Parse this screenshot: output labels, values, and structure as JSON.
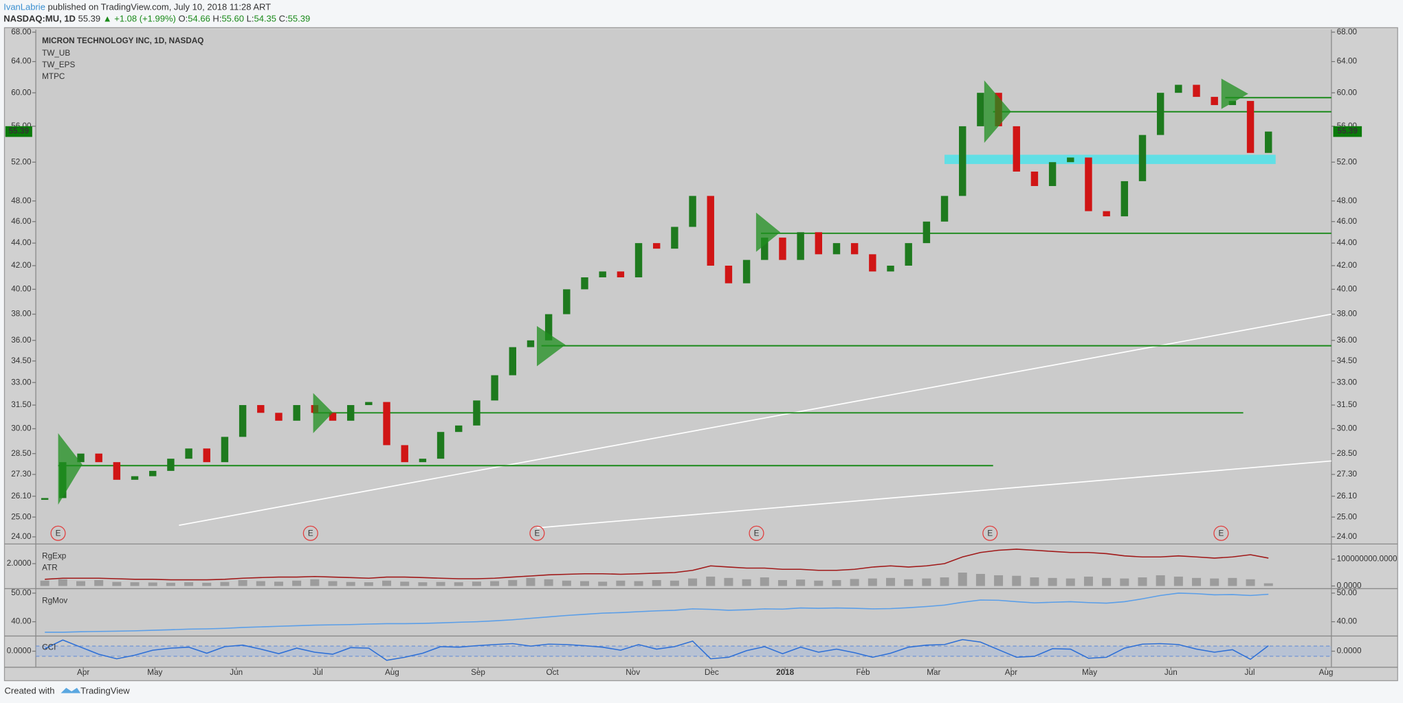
{
  "header": {
    "author": "IvanLabrie",
    "published": "published on TradingView.com, July 10, 2018 11:28 ART",
    "symbol": "NASDAQ:MU, 1D",
    "last": "55.39",
    "change": "▲ +1.08 (+1.99%)",
    "o_label": "O:",
    "o": "54.66",
    "h_label": "H:",
    "h": "55.60",
    "l_label": "L:",
    "l": "54.35",
    "c_label": "C:",
    "c": "55.39"
  },
  "footer": {
    "created": "Created with",
    "brand": "TradingView"
  },
  "chart_data": [
    {
      "type": "candlestick",
      "title": "MICRON TECHNOLOGY INC, 1D, NASDAQ",
      "indicators": [
        "TW_UB",
        "TW_EPS",
        "MTPC"
      ],
      "x": [
        0,
        1,
        2,
        3,
        4,
        5,
        6,
        7,
        8,
        9,
        10,
        11,
        12,
        13,
        14,
        15,
        16,
        17,
        18,
        19,
        20,
        21,
        22,
        23,
        24,
        25,
        26,
        27,
        28,
        29,
        30,
        31,
        32,
        33,
        34,
        35,
        36,
        37,
        38,
        39,
        40,
        41,
        42,
        43,
        44,
        45,
        46,
        47,
        48,
        49,
        50,
        51,
        52,
        53,
        54,
        55,
        56,
        57,
        58,
        59,
        60,
        61,
        62,
        63,
        64,
        65,
        66,
        67,
        68
      ],
      "values": [
        26.0,
        28.0,
        28.5,
        28.0,
        27.0,
        27.2,
        27.5,
        28.2,
        28.8,
        28.0,
        29.5,
        31.5,
        31.0,
        30.5,
        31.5,
        31.0,
        30.5,
        31.5,
        31.7,
        29.0,
        28.0,
        28.2,
        29.8,
        30.2,
        31.8,
        33.5,
        35.5,
        36.0,
        38.0,
        40.0,
        41.0,
        41.5,
        41.0,
        44.0,
        43.5,
        45.5,
        48.5,
        42.0,
        40.5,
        42.5,
        44.5,
        42.5,
        45.0,
        43.0,
        44.0,
        43.0,
        41.5,
        42.0,
        44.0,
        46.0,
        48.5,
        56.0,
        60.0,
        56.0,
        51.0,
        49.5,
        52.0,
        52.5,
        47.0,
        46.5,
        50.0,
        55.0,
        60.0,
        61.0,
        59.5,
        58.5,
        59.0,
        53.0,
        55.39
      ],
      "up_color": "#1e7a1e",
      "down_color": "#d01515",
      "log_scale": true,
      "xlim": [
        -0.5,
        71.5
      ],
      "xticks": [
        {
          "value": 2.14,
          "label": "Apr"
        },
        {
          "value": 6.12,
          "label": "May"
        },
        {
          "value": 10.64,
          "label": "Jun"
        },
        {
          "value": 15.17,
          "label": "Jul"
        },
        {
          "value": 19.3,
          "label": "Aug"
        },
        {
          "value": 24.08,
          "label": "Sep"
        },
        {
          "value": 28.21,
          "label": "Oct"
        },
        {
          "value": 32.68,
          "label": "Nov"
        },
        {
          "value": 37.06,
          "label": "Dec"
        },
        {
          "value": 41.14,
          "label": "2018"
        },
        {
          "value": 45.47,
          "label": "Feb"
        },
        {
          "value": 49.4,
          "label": "Mar"
        },
        {
          "value": 53.7,
          "label": "Apr"
        },
        {
          "value": 58.06,
          "label": "May"
        },
        {
          "value": 62.58,
          "label": "Jun"
        },
        {
          "value": 66.96,
          "label": "Jul"
        },
        {
          "value": 71.2,
          "label": "Aug"
        }
      ],
      "ylim": [
        24,
        68
      ],
      "yticks": [
        {
          "value": 24,
          "label": "24.00"
        },
        {
          "value": 25,
          "label": "25.00"
        },
        {
          "value": 26.1,
          "label": "26.10"
        },
        {
          "value": 27.3,
          "label": "27.30"
        },
        {
          "value": 28.5,
          "label": "28.50"
        },
        {
          "value": 30,
          "label": "30.00"
        },
        {
          "value": 31.5,
          "label": "31.50"
        },
        {
          "value": 33,
          "label": "33.00"
        },
        {
          "value": 34.5,
          "label": "34.50"
        },
        {
          "value": 36,
          "label": "36.00"
        },
        {
          "value": 38,
          "label": "38.00"
        },
        {
          "value": 40,
          "label": "40.00"
        },
        {
          "value": 42,
          "label": "42.00"
        },
        {
          "value": 44,
          "label": "44.00"
        },
        {
          "value": 46,
          "label": "46.00"
        },
        {
          "value": 48,
          "label": "48.00"
        },
        {
          "value": 52,
          "label": "52.00"
        },
        {
          "value": 56,
          "label": "56.00"
        },
        {
          "value": 60,
          "label": "60.00"
        },
        {
          "value": 64,
          "label": "64.00"
        },
        {
          "value": 68,
          "label": "68.00"
        }
      ],
      "last_price": 55.39,
      "last_price_color": "#0a7a0a",
      "levels": [
        {
          "value": 27.8,
          "x0": 0.74,
          "x1": 52.7
        },
        {
          "value": 31.0,
          "x0": 14.9,
          "x1": 66.6
        },
        {
          "value": 35.6,
          "x0": 27.6,
          "x1": 71.5
        },
        {
          "value": 44.9,
          "x0": 39.8,
          "x1": 71.5
        },
        {
          "value": 57.7,
          "x0": 52.7,
          "x1": 71.5
        },
        {
          "value": 59.4,
          "x0": 65.6,
          "x1": 71.5
        }
      ],
      "level_color": "#1a8a1a",
      "zone": {
        "low": 51.8,
        "high": 52.8,
        "x0": 50.0,
        "x1": 68.4,
        "color": "#4fe3ea"
      },
      "trendlines": [
        {
          "x": [
            7.46,
            71.5
          ],
          "y": [
            24.58,
            38.0
          ]
        },
        {
          "x": [
            27.36,
            71.5
          ],
          "y": [
            24.45,
            28.07
          ]
        }
      ],
      "earnings": {
        "label": "E",
        "x": [
          0.74,
          14.77,
          27.36,
          39.55,
          52.53,
          65.37
        ]
      }
    },
    {
      "type": "bar",
      "series": [
        {
          "name": "RgExp",
          "color": "#9c9c9c",
          "values": [
            20000000,
            25000000,
            18000000,
            22000000,
            15000000,
            14000000,
            13000000,
            12000000,
            14000000,
            12000000,
            15000000,
            22000000,
            18000000,
            16000000,
            20000000,
            25000000,
            18000000,
            15000000,
            14000000,
            20000000,
            16000000,
            14000000,
            15000000,
            14000000,
            16000000,
            18000000,
            22000000,
            30000000,
            25000000,
            20000000,
            18000000,
            16000000,
            20000000,
            18000000,
            22000000,
            20000000,
            28000000,
            35000000,
            30000000,
            25000000,
            32000000,
            22000000,
            24000000,
            20000000,
            22000000,
            26000000,
            28000000,
            30000000,
            25000000,
            28000000,
            32000000,
            50000000,
            45000000,
            40000000,
            38000000,
            32000000,
            30000000,
            28000000,
            35000000,
            30000000,
            28000000,
            32000000,
            40000000,
            35000000,
            30000000,
            28000000,
            30000000,
            25000000,
            10000000
          ]
        },
        {
          "name": "ATR",
          "color": "#a01818",
          "axis": "y2",
          "values": [
            0.6,
            0.7,
            0.7,
            0.7,
            0.65,
            0.6,
            0.6,
            0.55,
            0.55,
            0.55,
            0.6,
            0.7,
            0.75,
            0.8,
            0.8,
            0.85,
            0.8,
            0.75,
            0.7,
            0.8,
            0.8,
            0.75,
            0.7,
            0.65,
            0.65,
            0.7,
            0.8,
            0.9,
            1.0,
            1.05,
            1.1,
            1.1,
            1.05,
            1.1,
            1.15,
            1.2,
            1.4,
            1.8,
            1.7,
            1.6,
            1.6,
            1.5,
            1.5,
            1.4,
            1.4,
            1.5,
            1.7,
            1.8,
            1.7,
            1.8,
            2.0,
            2.6,
            3.0,
            3.2,
            3.3,
            3.2,
            3.1,
            3.0,
            3.0,
            2.9,
            2.7,
            2.6,
            2.6,
            2.7,
            2.6,
            2.5,
            2.6,
            2.8,
            2.5
          ]
        }
      ],
      "ylim": [
        0,
        140000000
      ],
      "yticks": [
        {
          "value": 100000000,
          "label": "100000000.0000"
        },
        {
          "value": 0,
          "label": "0.0000"
        }
      ],
      "y2lim": [
        0,
        3.36
      ],
      "y2ticks": [
        {
          "value": 2,
          "label": "2.0000"
        }
      ]
    },
    {
      "type": "line",
      "series": [
        {
          "name": "RgMov",
          "color": "#5a9ee8",
          "values": [
            36.3,
            36.3,
            36.5,
            36.6,
            36.7,
            36.8,
            37.0,
            37.2,
            37.4,
            37.5,
            37.7,
            38.0,
            38.2,
            38.4,
            38.6,
            38.8,
            38.9,
            39.0,
            39.2,
            39.3,
            39.3,
            39.4,
            39.6,
            39.8,
            40.0,
            40.3,
            40.7,
            41.2,
            41.7,
            42.2,
            42.6,
            43.0,
            43.2,
            43.5,
            43.8,
            44.0,
            44.5,
            44.3,
            44.0,
            44.2,
            44.5,
            44.4,
            44.8,
            44.7,
            44.8,
            44.7,
            44.5,
            44.6,
            44.9,
            45.3,
            45.8,
            46.8,
            47.6,
            47.5,
            47.0,
            46.6,
            46.8,
            47.0,
            46.7,
            46.5,
            47.0,
            48.0,
            49.2,
            50.0,
            49.8,
            49.4,
            49.5,
            49.2,
            49.6
          ]
        }
      ],
      "ylim": [
        35,
        51.25
      ],
      "yticks": [
        {
          "value": 40,
          "label": "40.00"
        },
        {
          "value": 50,
          "label": "50.00"
        }
      ]
    },
    {
      "type": "line",
      "series": [
        {
          "name": "CCI",
          "color": "#2d6fd6",
          "values": [
            50,
            220,
            80,
            -60,
            -150,
            -80,
            20,
            60,
            80,
            -40,
            90,
            120,
            40,
            -50,
            60,
            -20,
            -60,
            70,
            60,
            -180,
            -120,
            -40,
            90,
            80,
            110,
            130,
            150,
            100,
            140,
            130,
            110,
            80,
            20,
            130,
            40,
            90,
            200,
            -150,
            -120,
            10,
            90,
            -50,
            80,
            -20,
            40,
            -30,
            -120,
            -40,
            80,
            120,
            130,
            230,
            180,
            30,
            -120,
            -100,
            50,
            40,
            -140,
            -120,
            60,
            140,
            150,
            130,
            40,
            -20,
            30,
            -160,
            110
          ]
        }
      ],
      "ylim": [
        -300,
        300
      ],
      "yticks": [
        {
          "value": 0,
          "label": "0.0000"
        }
      ],
      "bands": [
        -100,
        100
      ]
    }
  ]
}
